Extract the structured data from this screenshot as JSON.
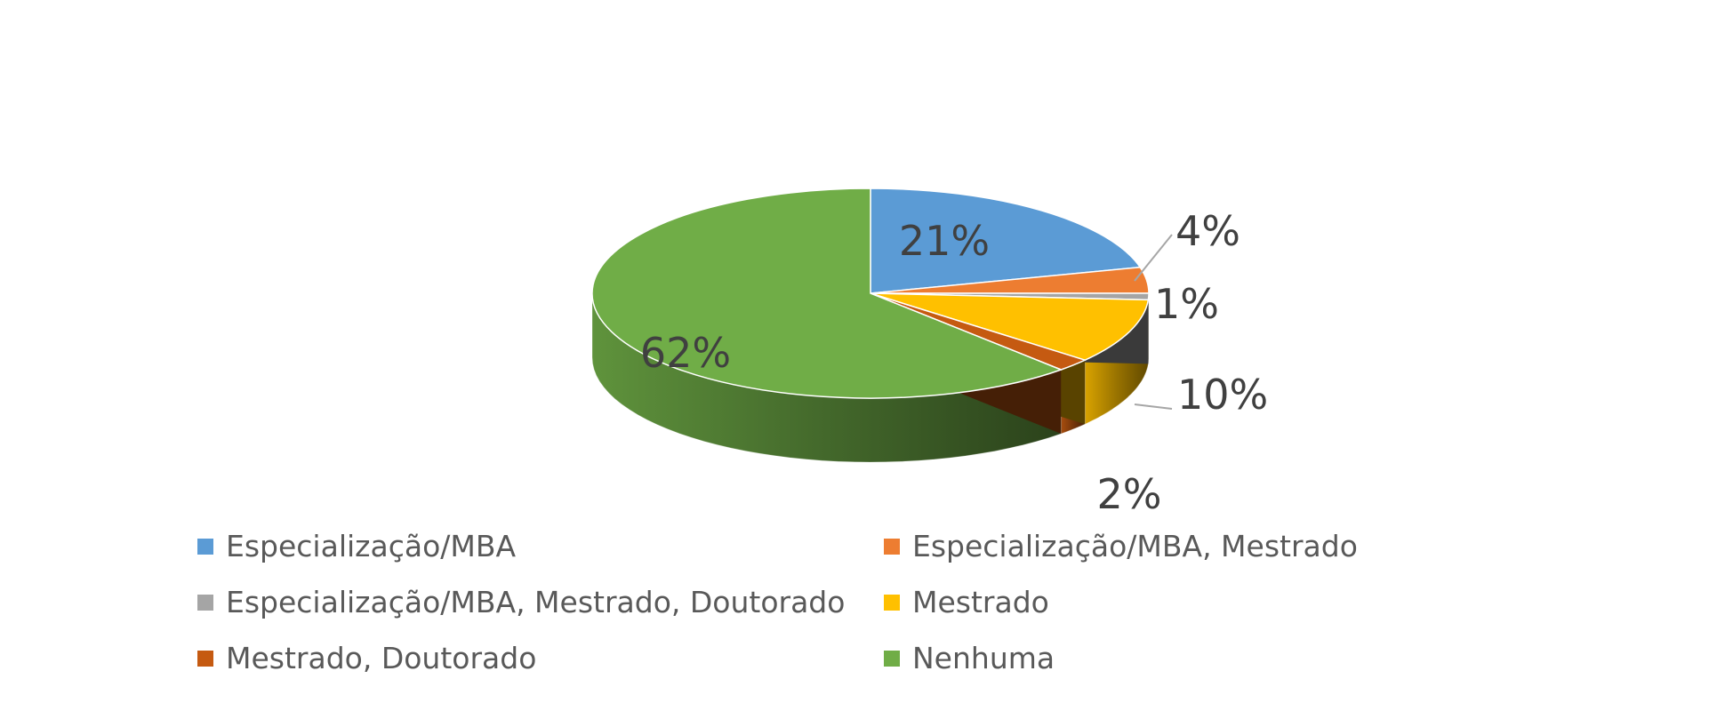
{
  "chart_data": {
    "type": "pie",
    "style": "3d",
    "legend_position": "bottom",
    "series": [
      {
        "slices": [
          {
            "label": "Especialização/MBA",
            "value": 21,
            "data_label": "21%",
            "color": "#5B9BD5"
          },
          {
            "label": "Especialização/MBA, Mestrado",
            "value": 4,
            "data_label": "4%",
            "color": "#ED7D31"
          },
          {
            "label": "Especialização/MBA, Mestrado, Doutorado",
            "value": 1,
            "data_label": "1%",
            "color": "#A5A5A5"
          },
          {
            "label": "Mestrado",
            "value": 10,
            "data_label": "10%",
            "color": "#FFC000"
          },
          {
            "label": "Mestrado, Doutorado",
            "value": 2,
            "data_label": "2%",
            "color": "#C55A11"
          },
          {
            "label": "Nenhuma",
            "value": 62,
            "data_label": "62%",
            "color": "#70AD47"
          }
        ]
      }
    ]
  }
}
